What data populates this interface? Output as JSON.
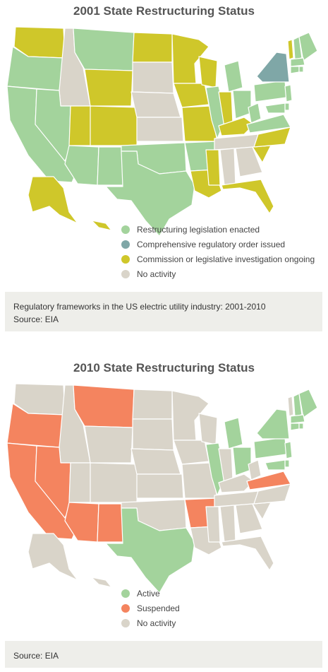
{
  "maps": [
    {
      "title": "2001 State Restructuring Status",
      "legend": [
        {
          "label": "Restructuring legislation enacted",
          "color": "#a3d39c"
        },
        {
          "label": "Comprehensive regulatory order issued",
          "color": "#7fa7a7"
        },
        {
          "label": "Commission or legislative investigation ongoing",
          "color": "#cfc72a"
        },
        {
          "label": "No activity",
          "color": "#d9d4c9"
        }
      ],
      "caption": [
        "Regulatory frameworks in the US electric utility industry: 2001-2010",
        "Source: EIA"
      ]
    },
    {
      "title": "2010 State Restructuring Status",
      "legend": [
        {
          "label": "Active",
          "color": "#a3d39c"
        },
        {
          "label": "Suspended",
          "color": "#f4845f"
        },
        {
          "label": "No activity",
          "color": "#d9d4c9"
        }
      ],
      "caption": [
        "Source: EIA"
      ]
    }
  ]
}
